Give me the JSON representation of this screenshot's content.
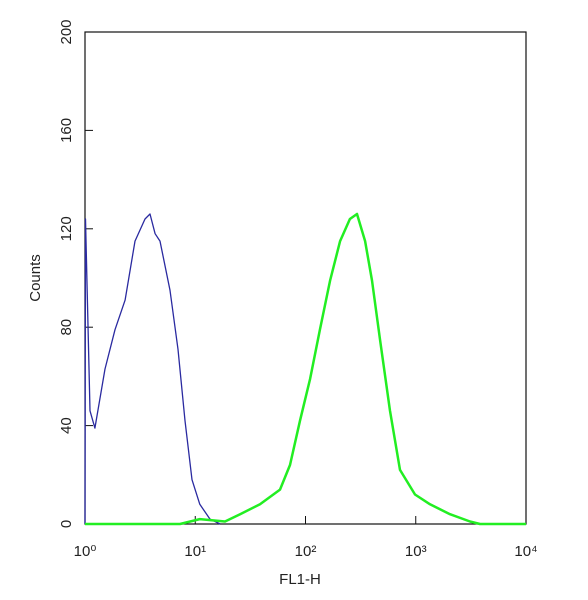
{
  "chart_data": {
    "type": "line",
    "x_label": "FL1-H",
    "y_label": "Counts",
    "x_log": true,
    "xlim": [
      1,
      10000
    ],
    "xticks": [
      {
        "value": 1,
        "label": "10⁰"
      },
      {
        "value": 10,
        "label": "10¹"
      },
      {
        "value": 100,
        "label": "10²"
      },
      {
        "value": 1000,
        "label": "10³"
      },
      {
        "value": 10000,
        "label": "10⁴"
      }
    ],
    "ylim": [
      0,
      200
    ],
    "yticks": [
      0,
      40,
      80,
      120,
      160,
      200
    ],
    "series": [
      {
        "color": "#2a2aa0",
        "x": [
          1.0,
          1.01,
          1.11,
          1.23,
          1.52,
          1.87,
          2.31,
          2.84,
          3.5,
          3.89,
          4.32,
          4.79,
          5.9,
          6.98,
          8.07,
          9.35,
          11.0,
          13.6,
          16.8
        ],
        "values": [
          0,
          124,
          46,
          39,
          63,
          79,
          91,
          115,
          124,
          126,
          118,
          115,
          95,
          71,
          42,
          18,
          8,
          2,
          0
        ]
      },
      {
        "color": "#22ee22",
        "x": [
          1.0,
          7.27,
          11.0,
          18.6,
          25.5,
          38.7,
          58.7,
          72.3,
          89.1,
          110,
          135,
          167,
          206,
          253,
          293,
          347,
          401,
          474,
          584,
          719,
          984,
          1346,
          2046,
          3105,
          3828,
          10000
        ],
        "values": [
          0,
          0,
          2,
          1,
          4,
          8,
          14,
          24,
          42,
          59,
          79,
          99,
          115,
          124,
          126,
          115,
          99,
          75,
          46,
          22,
          12,
          8,
          4,
          1,
          0,
          0
        ]
      }
    ]
  }
}
